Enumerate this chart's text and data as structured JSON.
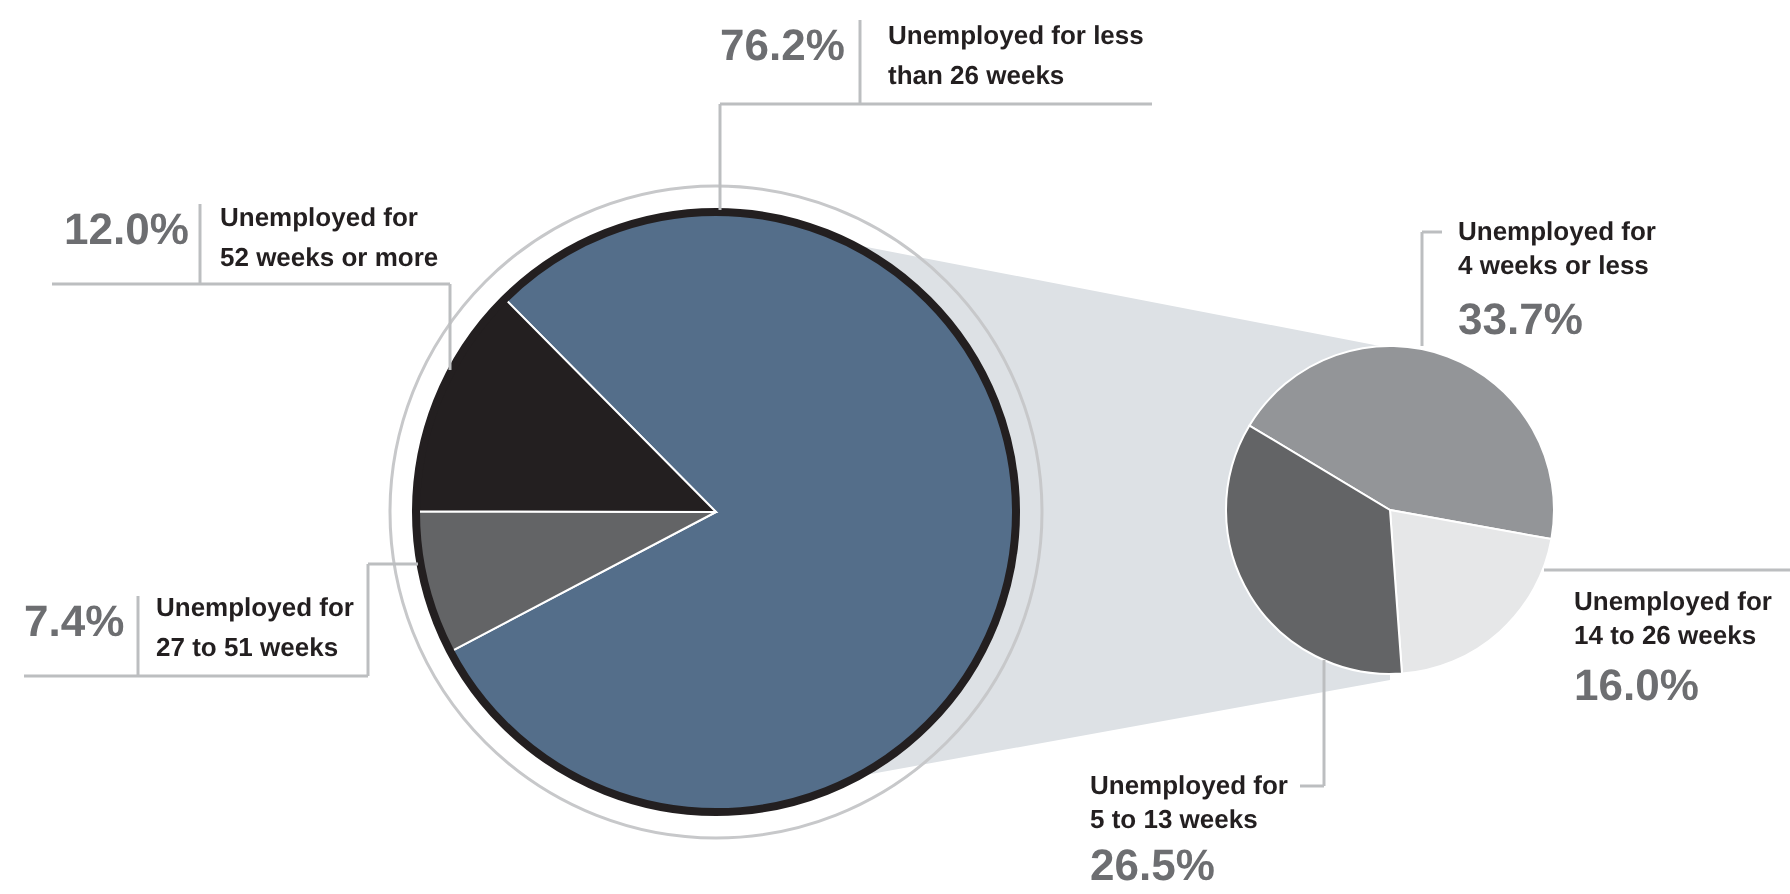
{
  "chart_data": [
    {
      "type": "pie",
      "categories": [
        "Unemployed for less\nthan 26 weeks",
        "Unemployed for\n27 to 51 weeks",
        "Unemployed for\n52 weeks or more"
      ],
      "values": [
        76.2,
        7.4,
        12.0
      ],
      "colors": [
        "#546e8a",
        "#636466",
        "#231f20"
      ],
      "value_labels": [
        "76.2%",
        "7.4%",
        "12.0%"
      ]
    },
    {
      "type": "pie",
      "categories": [
        "Unemployed for\n4 weeks or less",
        "Unemployed for\n14 to 26 weeks",
        "Unemployed for\n5 to 13 weeks"
      ],
      "values": [
        33.7,
        16.0,
        26.5
      ],
      "colors": [
        "#939598",
        "#e6e7e8",
        "#636466"
      ],
      "value_labels": [
        "33.7%",
        "16.0%",
        "26.5%"
      ]
    }
  ]
}
